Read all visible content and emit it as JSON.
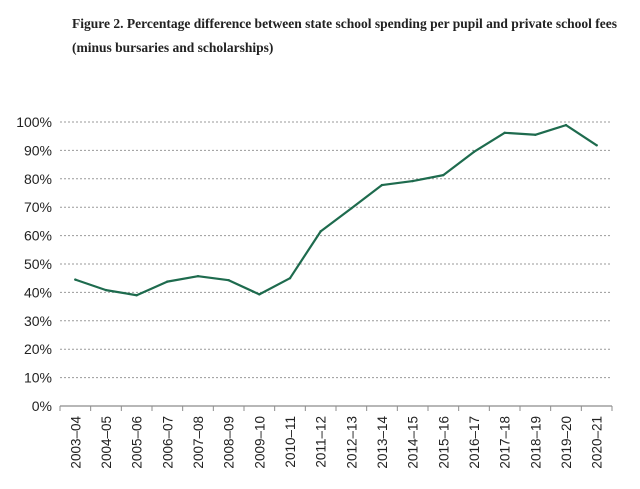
{
  "chart_data": {
    "type": "line",
    "title": "Figure 2. Percentage difference between state school spending per pupil and private school fees (minus bursaries and scholarships)",
    "xlabel": "",
    "ylabel": "",
    "categories": [
      "2003–04",
      "2004–05",
      "2005–06",
      "2006–07",
      "2007–08",
      "2008–09",
      "2009–10",
      "2010–11",
      "2011–12",
      "2012–13",
      "2013–14",
      "2014–15",
      "2015–16",
      "2016–17",
      "2017–18",
      "2018–19",
      "2019–20",
      "2020–21"
    ],
    "series": [
      {
        "name": "Percentage difference",
        "color": "#1e6b4e",
        "values": [
          44.5,
          40.8,
          39.0,
          43.8,
          45.7,
          44.3,
          39.3,
          45.0,
          61.5,
          69.6,
          77.8,
          79.2,
          81.3,
          89.5,
          96.2,
          95.5,
          98.9,
          91.8
        ]
      }
    ],
    "ylim": [
      0,
      100
    ],
    "yticks": [
      0,
      10,
      20,
      30,
      40,
      50,
      60,
      70,
      80,
      90,
      100
    ],
    "ytick_labels": [
      "0%",
      "10%",
      "20%",
      "30%",
      "40%",
      "50%",
      "60%",
      "70%",
      "80%",
      "90%",
      "100%"
    ],
    "grid": true,
    "gridline_color": "#9a9a9a"
  }
}
